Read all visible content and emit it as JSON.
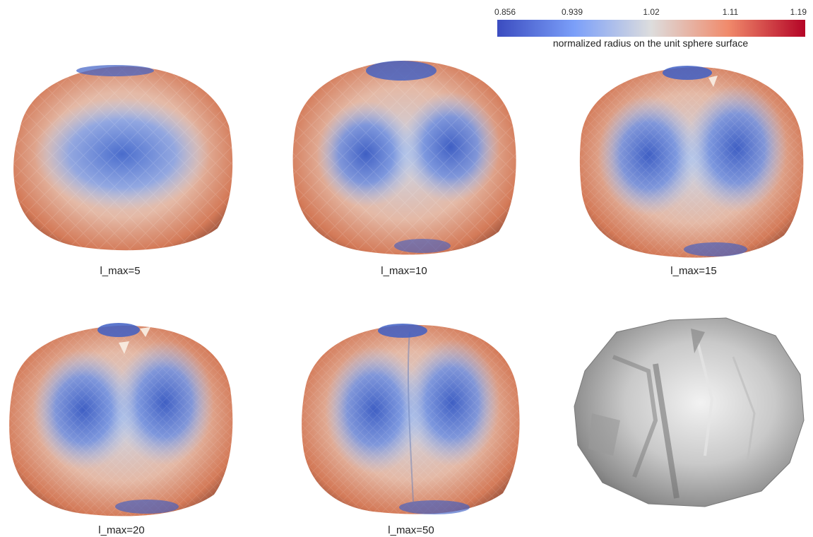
{
  "colorbar": {
    "ticks": [
      "0.856",
      "0.939",
      "1.02",
      "1.11",
      "1.19"
    ],
    "label": "normalized radius on the unit sphere surface",
    "colors": [
      "#3b4cc0",
      "#8db0fe",
      "#dddddd",
      "#f4987a",
      "#b40426"
    ]
  },
  "panels": [
    {
      "caption": "l_max=5",
      "style": "colored"
    },
    {
      "caption": "l_max=10",
      "style": "colored"
    },
    {
      "caption": "l_max=15",
      "style": "colored"
    },
    {
      "caption": "l_max=20",
      "style": "colored"
    },
    {
      "caption": "l_max=50",
      "style": "colored"
    },
    {
      "caption": "",
      "style": "gray-mesh"
    }
  ]
}
